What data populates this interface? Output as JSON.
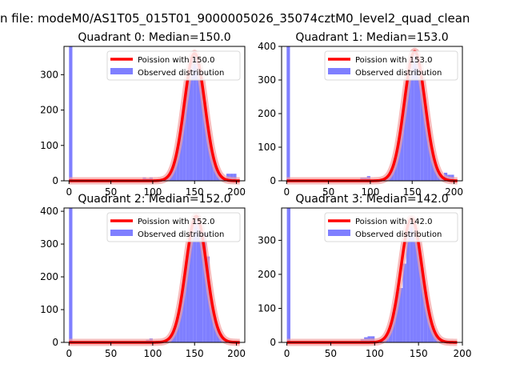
{
  "figure": {
    "suptitle": "n file: modeM0/AS1T05_015T01_9000005026_35074cztM0_level2_quad_clean"
  },
  "colors": {
    "observed": "#7f7fff",
    "poisson": "#ff0000",
    "poisson_glow": "#f4a0a0"
  },
  "chart_data": [
    {
      "type": "bar",
      "title": "Quadrant 0: Median=150.0",
      "median": 150,
      "peak": 360,
      "xlim": [
        -6,
        210
      ],
      "ylim": [
        0,
        380
      ],
      "xticks": [
        0,
        50,
        100,
        150,
        200
      ],
      "yticks": [
        0,
        100,
        200,
        300
      ],
      "zero_bin": 380,
      "low_tail": [
        0,
        0,
        0,
        0,
        0,
        0,
        0,
        0,
        0,
        10,
        6,
        10
      ],
      "bump": {
        "start": 189,
        "width": 10,
        "height": 20
      },
      "legend": [
        "Poission with 150.0",
        "Observed distribution"
      ]
    },
    {
      "type": "bar",
      "title": "Quadrant 1: Median=153.0",
      "median": 153,
      "peak": 385,
      "xlim": [
        -6,
        210
      ],
      "ylim": [
        0,
        400
      ],
      "xticks": [
        0,
        50,
        100,
        150,
        200
      ],
      "yticks": [
        0,
        100,
        200,
        300,
        400
      ],
      "zero_bin": 400,
      "low_tail": [
        0,
        0,
        0,
        0,
        0,
        0,
        0,
        0,
        0,
        10,
        10,
        14
      ],
      "bump": {
        "start": 190,
        "width": 10,
        "height": 18
      },
      "legend": [
        "Poission with 153.0",
        "Observed distribution"
      ]
    },
    {
      "type": "bar",
      "title": "Quadrant 2: Median=152.0",
      "median": 152,
      "peak": 385,
      "xlim": [
        -6,
        210
      ],
      "ylim": [
        0,
        410
      ],
      "xticks": [
        0,
        50,
        100,
        150,
        200
      ],
      "yticks": [
        0,
        100,
        200,
        300,
        400
      ],
      "zero_bin": 410,
      "low_tail": [
        0,
        0,
        0,
        0,
        0,
        0,
        0,
        0,
        0,
        0,
        8,
        12
      ],
      "bump": {
        "start": 160,
        "width": 8,
        "height": 60
      },
      "legend": [
        "Poission with 152.0",
        "Observed distribution"
      ]
    },
    {
      "type": "bar",
      "title": "Quadrant 3: Median=142.0",
      "median": 142,
      "peak": 365,
      "xlim": [
        -6,
        200
      ],
      "ylim": [
        0,
        395
      ],
      "xticks": [
        0,
        50,
        100,
        150,
        200
      ],
      "yticks": [
        0,
        100,
        200,
        300
      ],
      "zero_bin": 395,
      "low_tail": [
        0,
        0,
        0,
        0,
        0,
        0,
        0,
        0,
        10,
        15,
        18,
        18
      ],
      "bump": {
        "start": 128,
        "width": 8,
        "height": -60
      },
      "legend": [
        "Poission with 142.0",
        "Observed distribution"
      ]
    }
  ]
}
